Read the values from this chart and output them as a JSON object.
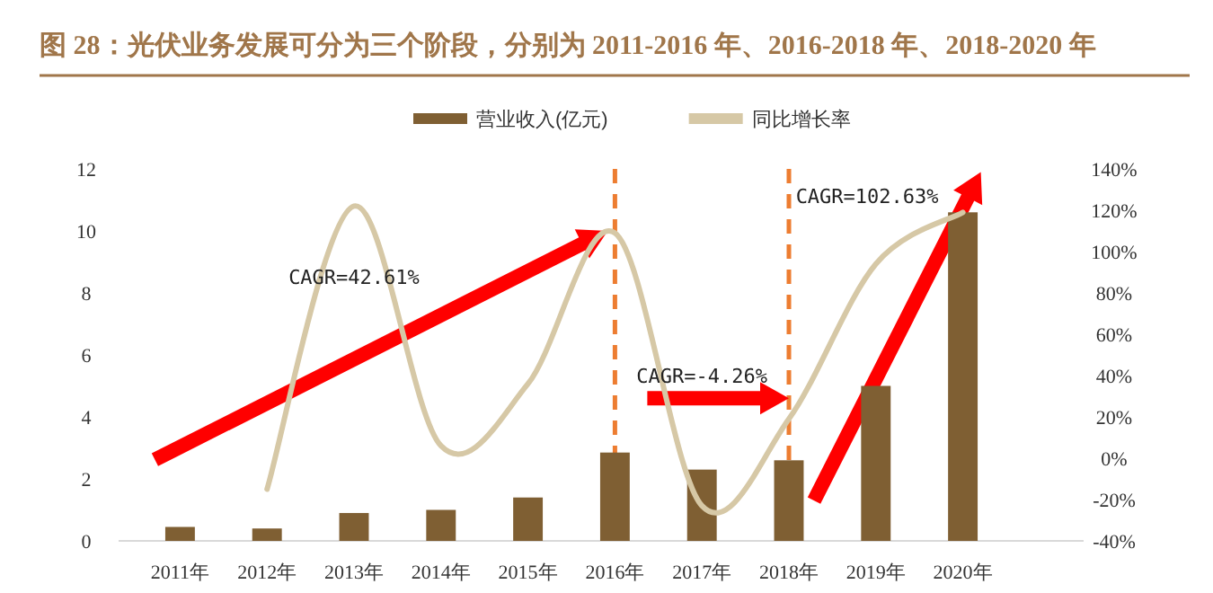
{
  "chart_data": {
    "type": "bar",
    "title": "图 28：光伏业务发展可分为三个阶段，分别为 2011-2016 年、2016-2018 年、2018-2020 年",
    "categories": [
      "2011年",
      "2012年",
      "2013年",
      "2014年",
      "2015年",
      "2016年",
      "2017年",
      "2018年",
      "2019年",
      "2020年"
    ],
    "series": [
      {
        "name": "营业收入(亿元)",
        "color": "#7f5f33",
        "values": [
          0.45,
          0.4,
          0.9,
          1.0,
          1.4,
          2.85,
          2.3,
          2.6,
          5.0,
          10.6
        ]
      },
      {
        "name": "同比增长率",
        "type": "line",
        "axis": "y2",
        "color": "#d6c8a6",
        "values": [
          null,
          -15,
          122,
          6,
          36,
          109,
          -23,
          19,
          94,
          119
        ]
      }
    ],
    "ylim": [
      0,
      12
    ],
    "yticks": [
      0,
      2,
      4,
      6,
      8,
      10,
      12
    ],
    "y2lim": [
      -40,
      140
    ],
    "y2ticks": [
      {
        "value": -40,
        "label": "-40%"
      },
      {
        "value": -20,
        "label": "-20%"
      },
      {
        "value": 0,
        "label": "0%"
      },
      {
        "value": 20,
        "label": "20%"
      },
      {
        "value": 40,
        "label": "40%"
      },
      {
        "value": 60,
        "label": "60%"
      },
      {
        "value": 80,
        "label": "80%"
      },
      {
        "value": 100,
        "label": "100%"
      },
      {
        "value": 120,
        "label": "120%"
      },
      {
        "value": 140,
        "label": "140%"
      }
    ],
    "ref_lines": [
      {
        "axis": "x",
        "value": "2016年",
        "color": "#ed7d31",
        "line_style": "dashed"
      },
      {
        "axis": "x",
        "value": "2018年",
        "color": "#ed7d31",
        "line_style": "dashed"
      }
    ],
    "annotations": [
      "CAGR=42.61%",
      "CAGR=-4.26%",
      "CAGR=102.63%"
    ],
    "legend": "top",
    "grid": false
  }
}
